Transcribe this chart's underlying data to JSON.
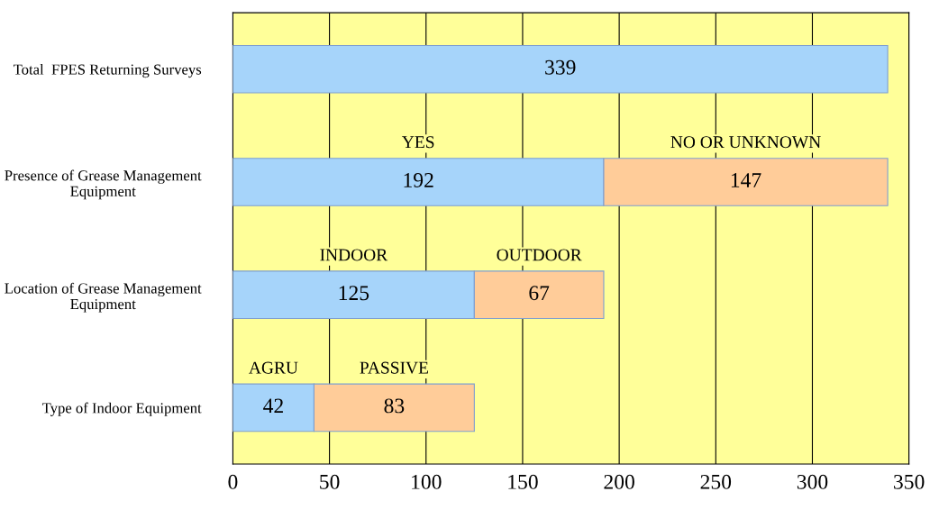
{
  "chart_data": {
    "type": "bar",
    "orientation": "horizontal",
    "stacked": true,
    "categories": [
      "Total  FPES Returning Surveys",
      "Presence of Grease Management Equipment",
      "Location of Grease Management Equipment",
      "Type of Indoor Equipment"
    ],
    "series": [
      {
        "color": "#a6d4fa",
        "values": [
          339,
          192,
          125,
          42
        ]
      },
      {
        "color": "#ffcc99",
        "values": [
          null,
          147,
          67,
          83
        ]
      }
    ],
    "data_labels": true,
    "xlim": [
      0,
      350
    ],
    "xticks": [
      0,
      50,
      100,
      150,
      200,
      250,
      300,
      350
    ],
    "grid": "x",
    "legend": false,
    "annotations": [
      "YES",
      "NO OR UNKNOWN",
      "INDOOR",
      "OUTDOOR",
      "AGRU",
      "PASSIVE"
    ]
  }
}
